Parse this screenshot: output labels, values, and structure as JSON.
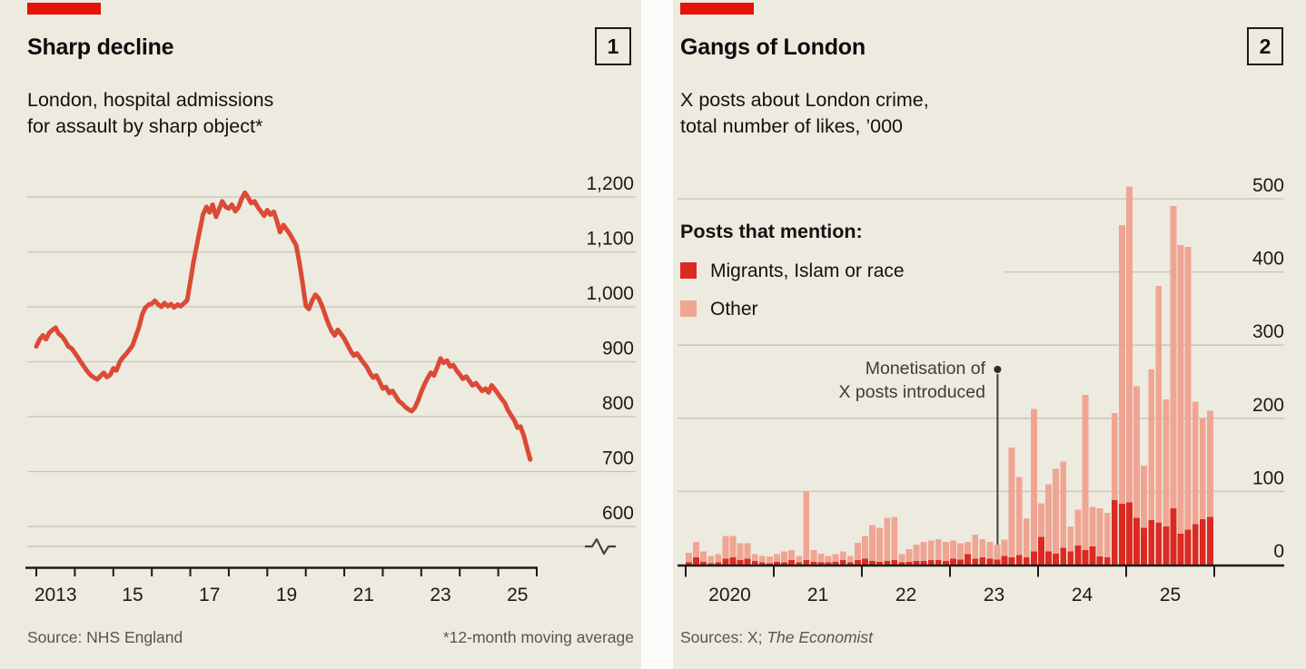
{
  "colors": {
    "brand_red": "#E3120B",
    "line_red": "#DB4A35",
    "migrants_red": "#DC2A22",
    "other_pink": "#F0A593",
    "grid": "#C6C3B7",
    "axis": "#1A1A1A",
    "panel_bg": "#EDEAE0",
    "annotation": "#3F3F3F",
    "label_text": "#1A1A1A"
  },
  "left_panel": {
    "index_label": "1",
    "title": "Sharp decline",
    "subtitle_lines": [
      "London, hospital admissions",
      "for assault by sharp object*"
    ],
    "source": "Source: NHS England",
    "footnote": "*12-month moving average"
  },
  "right_panel": {
    "index_label": "2",
    "title": "Gangs of London",
    "subtitle_lines": [
      "X posts about London crime,",
      "total number of likes, ’000"
    ],
    "legend_title": "Posts that mention:",
    "legend": [
      {
        "label": "Migrants, Islam or race",
        "color": "#DC2A22"
      },
      {
        "label": "Other",
        "color": "#F0A593"
      }
    ],
    "annotation_lines": [
      "Monetisation of",
      "X posts introduced"
    ],
    "sources_prefix": "Sources: X; ",
    "sources_italic": "The Economist"
  },
  "chart_data": [
    {
      "type": "line",
      "title": "Sharp decline",
      "subtitle": "London, hospital admissions for assault by sharp object*",
      "ylabel": "",
      "xlabel": "",
      "ylim": [
        600,
        1200
      ],
      "axis_break": true,
      "grid": true,
      "yticks": [
        1200,
        1100,
        1000,
        900,
        800,
        700,
        600
      ],
      "ytick_labels": [
        "1,200",
        "1,100",
        "1,000",
        "900",
        "800",
        "700",
        "600"
      ],
      "xticks": [
        2013,
        2014,
        2015,
        2016,
        2017,
        2018,
        2019,
        2020,
        2021,
        2022,
        2023,
        2024,
        2025,
        2026
      ],
      "xlabel_positions": [
        2013.5,
        2015.5,
        2017.5,
        2019.5,
        2021.5,
        2023.5,
        2025.5
      ],
      "xlabels": [
        "2013",
        "15",
        "17",
        "19",
        "21",
        "23",
        "25"
      ],
      "series": [
        {
          "name": "Hospital admissions, 12-month moving average",
          "points": [
            [
              2013.0,
              928
            ],
            [
              2013.08,
              940
            ],
            [
              2013.17,
              948
            ],
            [
              2013.25,
              941
            ],
            [
              2013.33,
              952
            ],
            [
              2013.42,
              958
            ],
            [
              2013.5,
              962
            ],
            [
              2013.58,
              951
            ],
            [
              2013.67,
              946
            ],
            [
              2013.75,
              938
            ],
            [
              2013.83,
              928
            ],
            [
              2013.92,
              924
            ],
            [
              2014.0,
              916
            ],
            [
              2014.08,
              908
            ],
            [
              2014.17,
              898
            ],
            [
              2014.25,
              890
            ],
            [
              2014.33,
              882
            ],
            [
              2014.42,
              875
            ],
            [
              2014.5,
              871
            ],
            [
              2014.58,
              868
            ],
            [
              2014.67,
              874
            ],
            [
              2014.75,
              880
            ],
            [
              2014.83,
              872
            ],
            [
              2014.92,
              876
            ],
            [
              2015.0,
              888
            ],
            [
              2015.08,
              884
            ],
            [
              2015.17,
              900
            ],
            [
              2015.25,
              908
            ],
            [
              2015.33,
              914
            ],
            [
              2015.42,
              922
            ],
            [
              2015.5,
              930
            ],
            [
              2015.58,
              946
            ],
            [
              2015.67,
              964
            ],
            [
              2015.75,
              986
            ],
            [
              2015.83,
              998
            ],
            [
              2015.92,
              1004
            ],
            [
              2016.0,
              1006
            ],
            [
              2016.08,
              1011
            ],
            [
              2016.17,
              1004
            ],
            [
              2016.25,
              1000
            ],
            [
              2016.33,
              1007
            ],
            [
              2016.42,
              1001
            ],
            [
              2016.5,
              1005
            ],
            [
              2016.58,
              999
            ],
            [
              2016.67,
              1004
            ],
            [
              2016.75,
              1001
            ],
            [
              2016.83,
              1006
            ],
            [
              2016.92,
              1012
            ],
            [
              2017.0,
              1045
            ],
            [
              2017.08,
              1080
            ],
            [
              2017.17,
              1112
            ],
            [
              2017.25,
              1140
            ],
            [
              2017.33,
              1168
            ],
            [
              2017.42,
              1182
            ],
            [
              2017.5,
              1172
            ],
            [
              2017.58,
              1186
            ],
            [
              2017.67,
              1164
            ],
            [
              2017.75,
              1178
            ],
            [
              2017.83,
              1192
            ],
            [
              2017.92,
              1182
            ],
            [
              2018.0,
              1179
            ],
            [
              2018.08,
              1186
            ],
            [
              2018.17,
              1174
            ],
            [
              2018.25,
              1181
            ],
            [
              2018.33,
              1196
            ],
            [
              2018.42,
              1208
            ],
            [
              2018.5,
              1199
            ],
            [
              2018.58,
              1189
            ],
            [
              2018.67,
              1192
            ],
            [
              2018.75,
              1182
            ],
            [
              2018.83,
              1174
            ],
            [
              2018.92,
              1166
            ],
            [
              2019.0,
              1176
            ],
            [
              2019.08,
              1168
            ],
            [
              2019.17,
              1173
            ],
            [
              2019.25,
              1156
            ],
            [
              2019.33,
              1136
            ],
            [
              2019.42,
              1149
            ],
            [
              2019.5,
              1141
            ],
            [
              2019.58,
              1133
            ],
            [
              2019.67,
              1122
            ],
            [
              2019.75,
              1112
            ],
            [
              2019.83,
              1082
            ],
            [
              2019.92,
              1042
            ],
            [
              2020.0,
              1002
            ],
            [
              2020.08,
              996
            ],
            [
              2020.17,
              1012
            ],
            [
              2020.25,
              1022
            ],
            [
              2020.33,
              1016
            ],
            [
              2020.42,
              1002
            ],
            [
              2020.5,
              986
            ],
            [
              2020.58,
              970
            ],
            [
              2020.67,
              956
            ],
            [
              2020.75,
              948
            ],
            [
              2020.83,
              958
            ],
            [
              2020.92,
              950
            ],
            [
              2021.0,
              942
            ],
            [
              2021.08,
              931
            ],
            [
              2021.17,
              919
            ],
            [
              2021.25,
              911
            ],
            [
              2021.33,
              915
            ],
            [
              2021.42,
              906
            ],
            [
              2021.5,
              898
            ],
            [
              2021.58,
              891
            ],
            [
              2021.67,
              879
            ],
            [
              2021.75,
              871
            ],
            [
              2021.83,
              875
            ],
            [
              2021.92,
              863
            ],
            [
              2022.0,
              851
            ],
            [
              2022.08,
              854
            ],
            [
              2022.17,
              843
            ],
            [
              2022.25,
              847
            ],
            [
              2022.33,
              838
            ],
            [
              2022.42,
              828
            ],
            [
              2022.5,
              824
            ],
            [
              2022.58,
              818
            ],
            [
              2022.67,
              813
            ],
            [
              2022.75,
              810
            ],
            [
              2022.83,
              816
            ],
            [
              2022.92,
              830
            ],
            [
              2023.0,
              845
            ],
            [
              2023.08,
              858
            ],
            [
              2023.17,
              871
            ],
            [
              2023.25,
              880
            ],
            [
              2023.33,
              875
            ],
            [
              2023.42,
              891
            ],
            [
              2023.5,
              906
            ],
            [
              2023.58,
              898
            ],
            [
              2023.67,
              902
            ],
            [
              2023.75,
              891
            ],
            [
              2023.83,
              894
            ],
            [
              2023.92,
              884
            ],
            [
              2024.0,
              877
            ],
            [
              2024.08,
              869
            ],
            [
              2024.17,
              873
            ],
            [
              2024.25,
              865
            ],
            [
              2024.33,
              857
            ],
            [
              2024.42,
              861
            ],
            [
              2024.5,
              854
            ],
            [
              2024.58,
              847
            ],
            [
              2024.67,
              851
            ],
            [
              2024.75,
              844
            ],
            [
              2024.83,
              857
            ],
            [
              2024.92,
              849
            ],
            [
              2025.0,
              841
            ],
            [
              2025.08,
              833
            ],
            [
              2025.17,
              825
            ],
            [
              2025.25,
              812
            ],
            [
              2025.33,
              803
            ],
            [
              2025.42,
              793
            ],
            [
              2025.5,
              780
            ],
            [
              2025.58,
              782
            ],
            [
              2025.67,
              764
            ],
            [
              2025.75,
              742
            ],
            [
              2025.83,
              722
            ]
          ]
        }
      ]
    },
    {
      "type": "bar",
      "stacked": true,
      "title": "Gangs of London",
      "subtitle": "X posts about London crime, total number of likes, '000",
      "ylim": [
        0,
        500
      ],
      "grid": true,
      "yticks": [
        500,
        400,
        300,
        200,
        100,
        0
      ],
      "ytick_labels": [
        "500",
        "400",
        "300",
        "200",
        "100",
        "0"
      ],
      "xticks": [
        2020,
        2021,
        2022,
        2023,
        2024,
        2025,
        2026
      ],
      "xlabel_positions": [
        2020.5,
        2021.5,
        2022.5,
        2023.5,
        2024.5,
        2025.5
      ],
      "xlabels": [
        "2020",
        "21",
        "22",
        "23",
        "24",
        "25"
      ],
      "months_start": "2020-01",
      "annotation": {
        "text": "Monetisation of X posts introduced",
        "year": 2023.54
      },
      "series": [
        {
          "name": "Migrants, Islam or race",
          "values": [
            3,
            10,
            4,
            2,
            3,
            8,
            10,
            6,
            8,
            5,
            3,
            2,
            4,
            3,
            6,
            3,
            6,
            4,
            3,
            3,
            4,
            6,
            3,
            6,
            8,
            5,
            4,
            5,
            6,
            3,
            4,
            5,
            5,
            6,
            6,
            5,
            8,
            7,
            14,
            8,
            10,
            8,
            7,
            12,
            10,
            13,
            10,
            18,
            38,
            18,
            15,
            23,
            18,
            26,
            20,
            25,
            11,
            10,
            88,
            83,
            85,
            64,
            50,
            61,
            58,
            52,
            77,
            42,
            48,
            55,
            62,
            65
          ]
        },
        {
          "name": "Other",
          "values": [
            13,
            21,
            14,
            10,
            11,
            31,
            29,
            23,
            21,
            9,
            9,
            9,
            10,
            15,
            14,
            9,
            94,
            16,
            12,
            9,
            10,
            12,
            9,
            24,
            31,
            49,
            46,
            59,
            59,
            11,
            17,
            22,
            26,
            27,
            29,
            26,
            25,
            22,
            17,
            33,
            25,
            23,
            20,
            22,
            150,
            107,
            53,
            195,
            46,
            92,
            116,
            118,
            34,
            49,
            212,
            54,
            66,
            61,
            119,
            381,
            432,
            180,
            85,
            206,
            323,
            174,
            413,
            395,
            386,
            168,
            138,
            145
          ]
        }
      ]
    }
  ]
}
